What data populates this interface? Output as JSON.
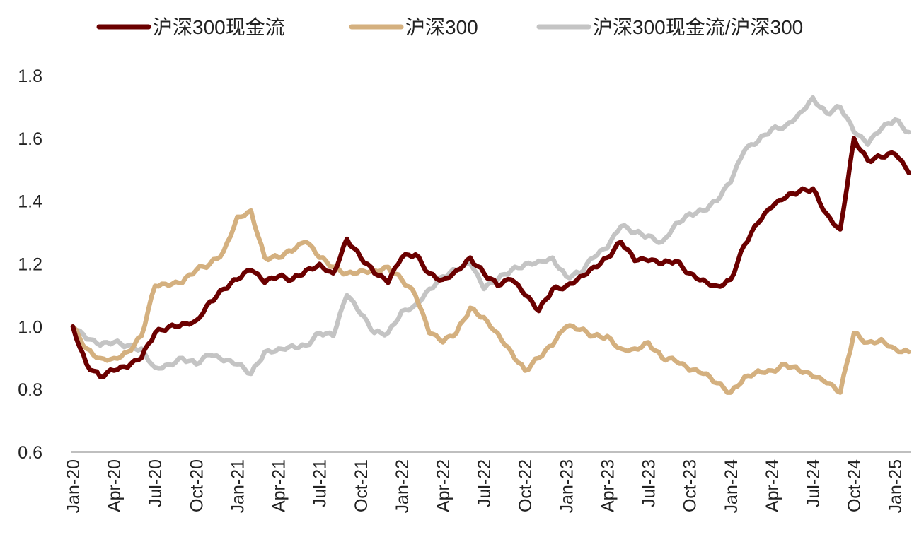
{
  "chart_data": {
    "type": "line",
    "title": "",
    "xlabel": "",
    "ylabel": "",
    "ylim": [
      0.6,
      1.8
    ],
    "yticks": [
      "0.6",
      "0.8",
      "1.0",
      "1.2",
      "1.4",
      "1.6",
      "1.8"
    ],
    "xticks": [
      "Jan-20",
      "Apr-20",
      "Jul-20",
      "Oct-20",
      "Jan-21",
      "Apr-21",
      "Jul-21",
      "Oct-21",
      "Jan-22",
      "Apr-22",
      "Jul-22",
      "Oct-22",
      "Jan-23",
      "Apr-23",
      "Jul-23",
      "Oct-23",
      "Jan-24",
      "Apr-24",
      "Jul-24",
      "Oct-24",
      "Jan-25"
    ],
    "x": [
      "2020-01",
      "2020-02",
      "2020-03",
      "2020-04",
      "2020-05",
      "2020-06",
      "2020-07",
      "2020-08",
      "2020-09",
      "2020-10",
      "2020-11",
      "2020-12",
      "2021-01",
      "2021-02",
      "2021-03",
      "2021-04",
      "2021-05",
      "2021-06",
      "2021-07",
      "2021-08",
      "2021-09",
      "2021-10",
      "2021-11",
      "2021-12",
      "2022-01",
      "2022-02",
      "2022-03",
      "2022-04",
      "2022-05",
      "2022-06",
      "2022-07",
      "2022-08",
      "2022-09",
      "2022-10",
      "2022-11",
      "2022-12",
      "2023-01",
      "2023-02",
      "2023-03",
      "2023-04",
      "2023-05",
      "2023-06",
      "2023-07",
      "2023-08",
      "2023-09",
      "2023-10",
      "2023-11",
      "2023-12",
      "2024-01",
      "2024-02",
      "2024-03",
      "2024-04",
      "2024-05",
      "2024-06",
      "2024-07",
      "2024-08",
      "2024-09",
      "2024-10",
      "2024-11",
      "2024-12",
      "2025-01",
      "2025-02"
    ],
    "grid": false,
    "legend_position": "top",
    "series": [
      {
        "name": "沪深300现金流",
        "color": "#6b0000",
        "values": [
          1.0,
          0.88,
          0.84,
          0.86,
          0.87,
          0.9,
          0.98,
          1.0,
          1.01,
          1.02,
          1.08,
          1.12,
          1.15,
          1.18,
          1.14,
          1.16,
          1.15,
          1.18,
          1.2,
          1.17,
          1.28,
          1.22,
          1.17,
          1.14,
          1.22,
          1.23,
          1.17,
          1.15,
          1.18,
          1.22,
          1.17,
          1.13,
          1.15,
          1.1,
          1.05,
          1.12,
          1.13,
          1.16,
          1.19,
          1.22,
          1.27,
          1.21,
          1.21,
          1.2,
          1.21,
          1.17,
          1.15,
          1.13,
          1.15,
          1.26,
          1.33,
          1.38,
          1.41,
          1.43,
          1.44,
          1.36,
          1.31,
          1.6,
          1.53,
          1.54,
          1.55,
          1.49
        ]
      },
      {
        "name": "沪深300",
        "color": "#d4b07f",
        "values": [
          1.0,
          0.93,
          0.9,
          0.9,
          0.92,
          0.97,
          1.13,
          1.13,
          1.14,
          1.18,
          1.2,
          1.24,
          1.35,
          1.37,
          1.22,
          1.22,
          1.24,
          1.27,
          1.22,
          1.19,
          1.17,
          1.18,
          1.18,
          1.19,
          1.15,
          1.1,
          0.98,
          0.95,
          0.98,
          1.06,
          1.03,
          0.98,
          0.92,
          0.86,
          0.9,
          0.94,
          1.0,
          0.99,
          0.97,
          0.97,
          0.93,
          0.93,
          0.95,
          0.9,
          0.89,
          0.86,
          0.85,
          0.82,
          0.79,
          0.84,
          0.86,
          0.86,
          0.88,
          0.86,
          0.84,
          0.82,
          0.79,
          0.98,
          0.95,
          0.96,
          0.93,
          0.92
        ]
      },
      {
        "name": "沪深300现金流/沪深300",
        "color": "#c4c4c4",
        "values": [
          1.0,
          0.96,
          0.94,
          0.95,
          0.94,
          0.93,
          0.87,
          0.88,
          0.9,
          0.88,
          0.91,
          0.89,
          0.88,
          0.85,
          0.92,
          0.93,
          0.94,
          0.94,
          0.98,
          0.97,
          1.1,
          1.04,
          0.98,
          0.98,
          1.05,
          1.07,
          1.12,
          1.16,
          1.18,
          1.2,
          1.12,
          1.15,
          1.18,
          1.2,
          1.21,
          1.22,
          1.16,
          1.17,
          1.22,
          1.25,
          1.32,
          1.3,
          1.29,
          1.27,
          1.33,
          1.36,
          1.37,
          1.4,
          1.46,
          1.56,
          1.59,
          1.63,
          1.64,
          1.68,
          1.73,
          1.68,
          1.7,
          1.62,
          1.58,
          1.63,
          1.66,
          1.62
        ]
      }
    ]
  }
}
